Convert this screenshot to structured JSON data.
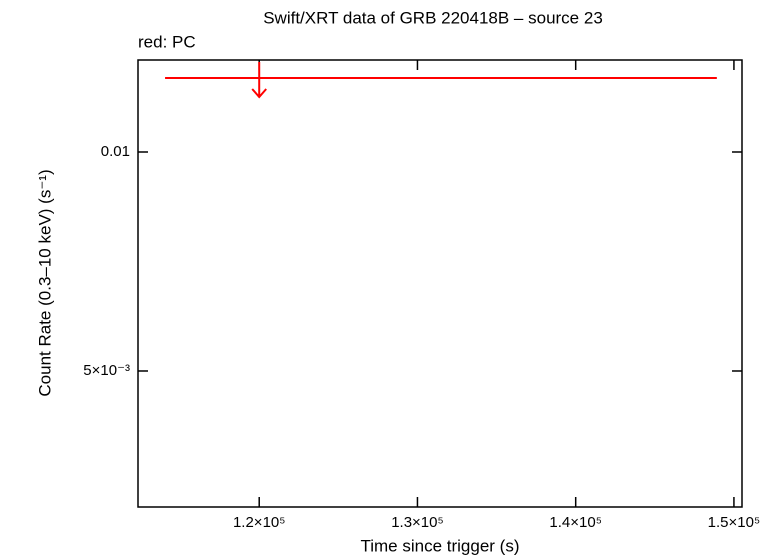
{
  "chart_data": {
    "type": "scatter",
    "title": "Swift/XRT data of GRB 220418B – source 23",
    "subtitle": "red: PC",
    "x_label": "Time since trigger (s)",
    "y_label": "Count Rate (0.3–10 keV) (s⁻¹)",
    "log_y": true,
    "xlim": [
      112340,
      150510
    ],
    "ylim": [
      0.003251,
      0.01338
    ],
    "xticks": [
      {
        "value": 120000,
        "label": "1.2×10⁵"
      },
      {
        "value": 130000,
        "label": "1.3×10⁵"
      },
      {
        "value": 140000,
        "label": "1.4×10⁵"
      },
      {
        "value": 150000,
        "label": "1.5×10⁵"
      }
    ],
    "yticks": [
      {
        "value": 0.005,
        "label": "5×10⁻³"
      },
      0.01
    ],
    "series": [
      {
        "color": "#ff0000",
        "upper_limit": true,
        "x": [
          120000
        ],
        "x_low": [
          114050
        ],
        "x_high": [
          148920
        ],
        "values": [
          0.01264
        ]
      }
    ]
  }
}
